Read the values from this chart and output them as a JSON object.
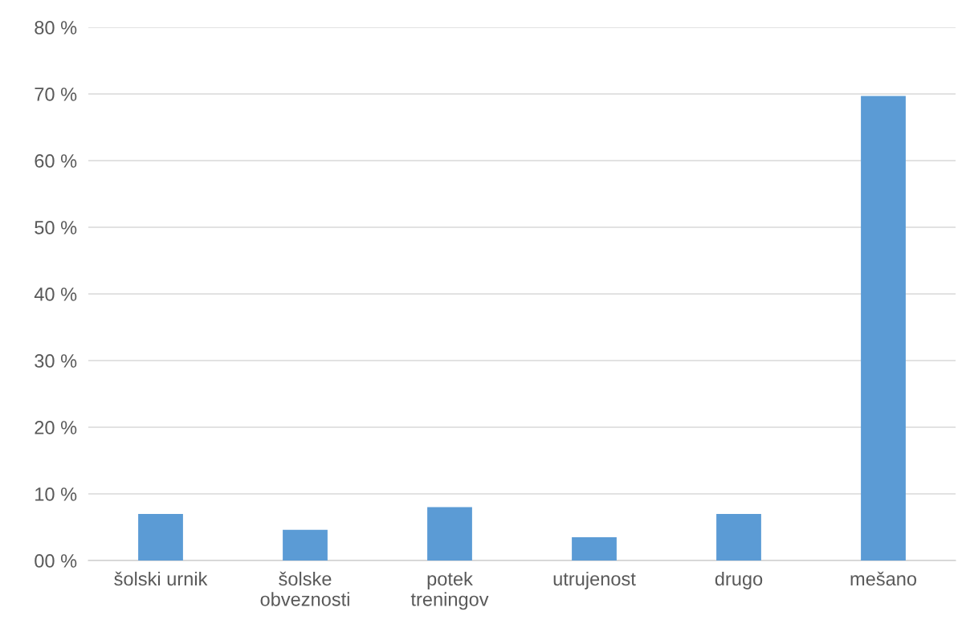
{
  "chart_data": {
    "type": "bar",
    "categories": [
      "šolski urnik",
      "šolske\nobveznosti",
      "potek\ntreningov",
      "utrujenost",
      "drugo",
      "mešano"
    ],
    "values": [
      7,
      4.6,
      8,
      3.5,
      7,
      69.7
    ],
    "color": "#5b9bd5",
    "ylim": [
      0,
      80
    ],
    "yticks": [
      {
        "value": 0,
        "label": "00 %"
      },
      {
        "value": 10,
        "label": "10 %"
      },
      {
        "value": 20,
        "label": "20 %"
      },
      {
        "value": 30,
        "label": "30 %"
      },
      {
        "value": 40,
        "label": "40 %"
      },
      {
        "value": 50,
        "label": "50 %"
      },
      {
        "value": 60,
        "label": "60 %"
      },
      {
        "value": 70,
        "label": "70 %"
      },
      {
        "value": 80,
        "label": "80 %"
      }
    ],
    "grid": "y",
    "legend": false
  }
}
